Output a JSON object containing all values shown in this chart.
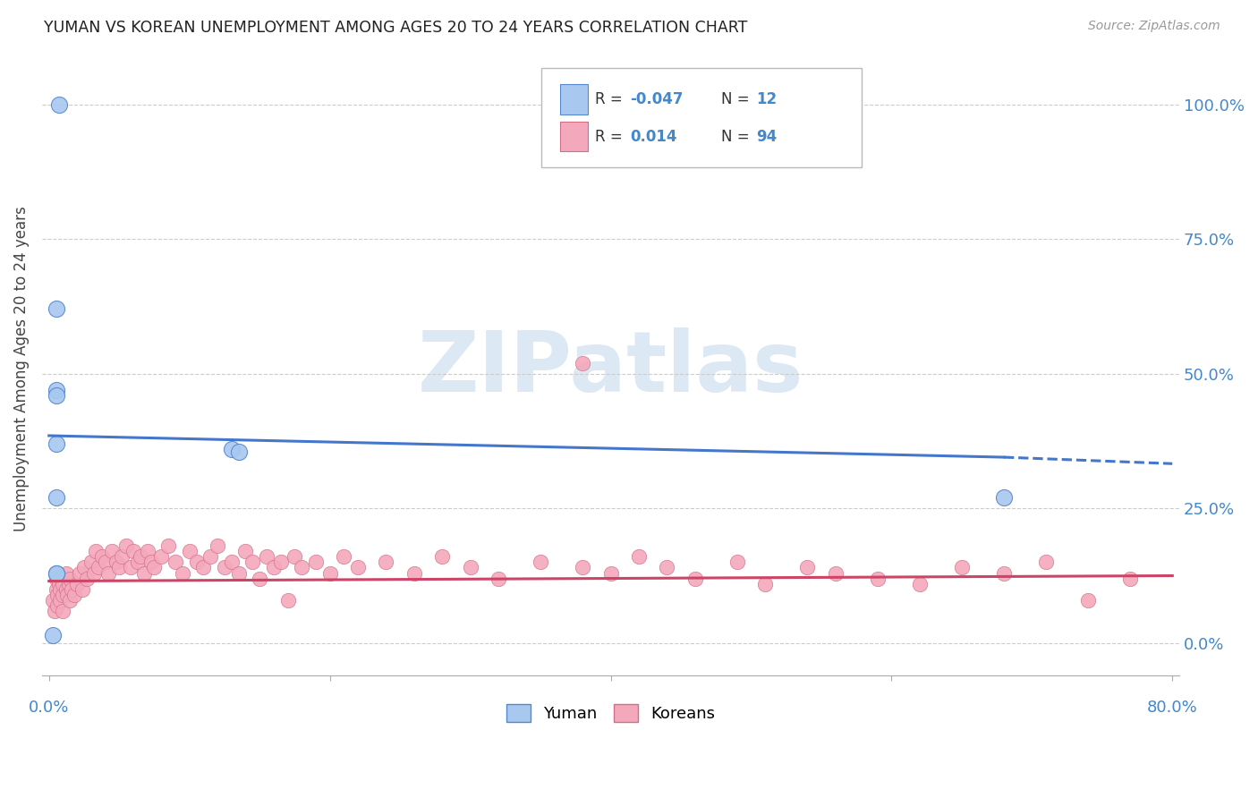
{
  "title": "YUMAN VS KOREAN UNEMPLOYMENT AMONG AGES 20 TO 24 YEARS CORRELATION CHART",
  "source": "Source: ZipAtlas.com",
  "ylabel": "Unemployment Among Ages 20 to 24 years",
  "ytick_labels": [
    "0.0%",
    "25.0%",
    "50.0%",
    "75.0%",
    "100.0%"
  ],
  "ytick_values": [
    0.0,
    0.25,
    0.5,
    0.75,
    1.0
  ],
  "xlim": [
    0.0,
    0.8
  ],
  "ylim": [
    -0.06,
    1.08
  ],
  "yuman_color": "#a8c8f0",
  "korean_color": "#f4a8bc",
  "yuman_edge_color": "#5588cc",
  "korean_edge_color": "#d07088",
  "yuman_line_color": "#4477cc",
  "korean_line_color": "#cc4466",
  "watermark_color": "#dde8f5",
  "yuman_scatter_x": [
    0.007,
    0.005,
    0.005,
    0.005,
    0.005,
    0.005,
    0.005,
    0.005,
    0.13,
    0.135,
    0.003,
    0.68
  ],
  "yuman_scatter_y": [
    1.0,
    0.62,
    0.47,
    0.46,
    0.37,
    0.27,
    0.13,
    0.13,
    0.36,
    0.355,
    0.015,
    0.27
  ],
  "yuman_trend_x": [
    0.0,
    0.68,
    0.8
  ],
  "yuman_trend_y": [
    0.385,
    0.345,
    0.333
  ],
  "korean_trend_x": [
    0.0,
    0.8
  ],
  "korean_trend_y": [
    0.115,
    0.125
  ],
  "korean_scatter_x": [
    0.003,
    0.004,
    0.005,
    0.005,
    0.006,
    0.006,
    0.007,
    0.008,
    0.008,
    0.009,
    0.01,
    0.01,
    0.01,
    0.012,
    0.012,
    0.013,
    0.014,
    0.015,
    0.015,
    0.016,
    0.018,
    0.02,
    0.022,
    0.024,
    0.025,
    0.027,
    0.03,
    0.032,
    0.033,
    0.035,
    0.038,
    0.04,
    0.042,
    0.045,
    0.048,
    0.05,
    0.052,
    0.055,
    0.058,
    0.06,
    0.063,
    0.065,
    0.068,
    0.07,
    0.073,
    0.075,
    0.08,
    0.085,
    0.09,
    0.095,
    0.1,
    0.105,
    0.11,
    0.115,
    0.12,
    0.125,
    0.13,
    0.135,
    0.14,
    0.145,
    0.15,
    0.155,
    0.16,
    0.165,
    0.17,
    0.175,
    0.18,
    0.19,
    0.2,
    0.21,
    0.22,
    0.24,
    0.26,
    0.28,
    0.3,
    0.32,
    0.35,
    0.38,
    0.4,
    0.42,
    0.44,
    0.46,
    0.49,
    0.51,
    0.54,
    0.56,
    0.59,
    0.62,
    0.65,
    0.68,
    0.71,
    0.74,
    0.77,
    0.38
  ],
  "korean_scatter_y": [
    0.08,
    0.06,
    0.1,
    0.12,
    0.09,
    0.07,
    0.11,
    0.1,
    0.08,
    0.12,
    0.09,
    0.11,
    0.06,
    0.1,
    0.13,
    0.09,
    0.11,
    0.08,
    0.12,
    0.1,
    0.09,
    0.11,
    0.13,
    0.1,
    0.14,
    0.12,
    0.15,
    0.13,
    0.17,
    0.14,
    0.16,
    0.15,
    0.13,
    0.17,
    0.15,
    0.14,
    0.16,
    0.18,
    0.14,
    0.17,
    0.15,
    0.16,
    0.13,
    0.17,
    0.15,
    0.14,
    0.16,
    0.18,
    0.15,
    0.13,
    0.17,
    0.15,
    0.14,
    0.16,
    0.18,
    0.14,
    0.15,
    0.13,
    0.17,
    0.15,
    0.12,
    0.16,
    0.14,
    0.15,
    0.08,
    0.16,
    0.14,
    0.15,
    0.13,
    0.16,
    0.14,
    0.15,
    0.13,
    0.16,
    0.14,
    0.12,
    0.15,
    0.14,
    0.13,
    0.16,
    0.14,
    0.12,
    0.15,
    0.11,
    0.14,
    0.13,
    0.12,
    0.11,
    0.14,
    0.13,
    0.15,
    0.08,
    0.12,
    0.52
  ]
}
